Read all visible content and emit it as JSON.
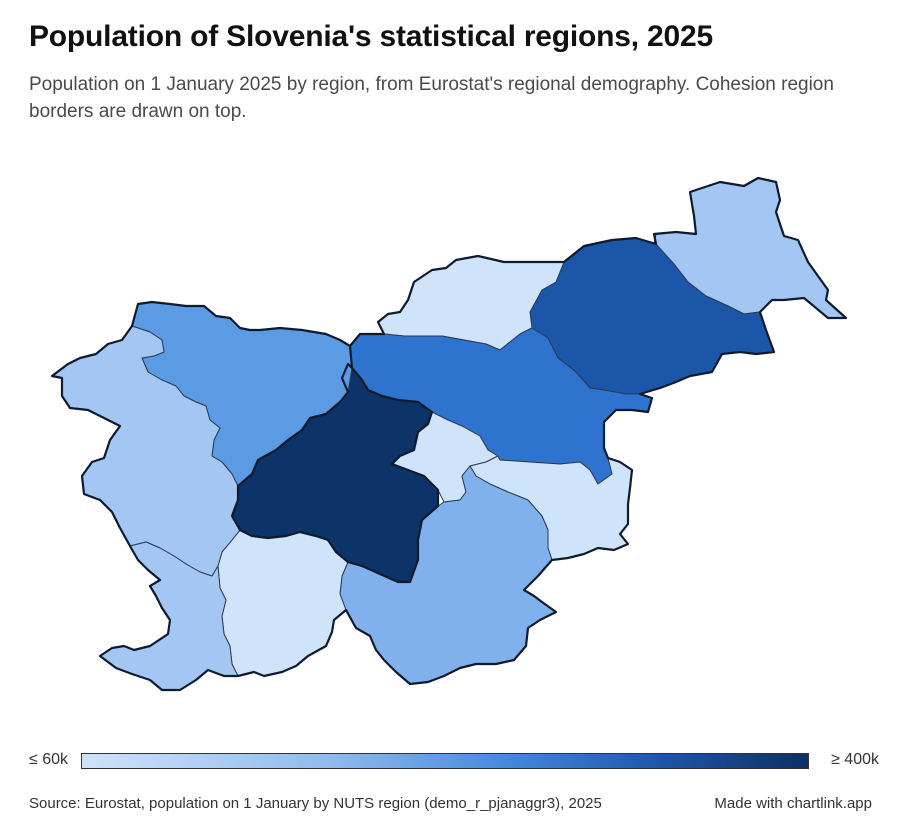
{
  "header": {
    "title": "Population of Slovenia's statistical regions, 2025",
    "subtitle": "Population on 1 January 2025 by region, from Eurostat's regional demography. Cohesion region borders are drawn on top."
  },
  "legend": {
    "min_label": "≤ 60k",
    "max_label": "≥ 400k"
  },
  "footer": {
    "source": "Source: Eurostat, population on 1 January by NUTS region (demo_r_pjanaggr3), 2025",
    "credit": "Made with chartlink.app"
  },
  "map_data": {
    "colors": {
      "lightest": "#cfe3fb",
      "light": "#a3c6f2",
      "mid_light": "#80b1ec",
      "mid": "#2e74cf",
      "dark": "#1c56a8",
      "darkest": "#0d3468"
    },
    "regions": [
      {
        "id": "pomurska",
        "color": "#a3c6f2"
      },
      {
        "id": "podravska",
        "color": "#1c56a8"
      },
      {
        "id": "koroska",
        "color": "#cfe3fb"
      },
      {
        "id": "savinjska",
        "color": "#2e74cf"
      },
      {
        "id": "zasavska",
        "color": "#cfe3fb"
      },
      {
        "id": "posavska",
        "color": "#cfe3fb"
      },
      {
        "id": "jugovzhodna-slovenija",
        "color": "#80b1ec"
      },
      {
        "id": "osrednjeslovenska",
        "color": "#0d3468"
      },
      {
        "id": "gorenjska",
        "color": "#5b9be3"
      },
      {
        "id": "primorsko-notranjska",
        "color": "#cfe3fb"
      },
      {
        "id": "goriska",
        "color": "#a3c6f2"
      },
      {
        "id": "obalno-kraska",
        "color": "#a3c6f2"
      }
    ]
  }
}
